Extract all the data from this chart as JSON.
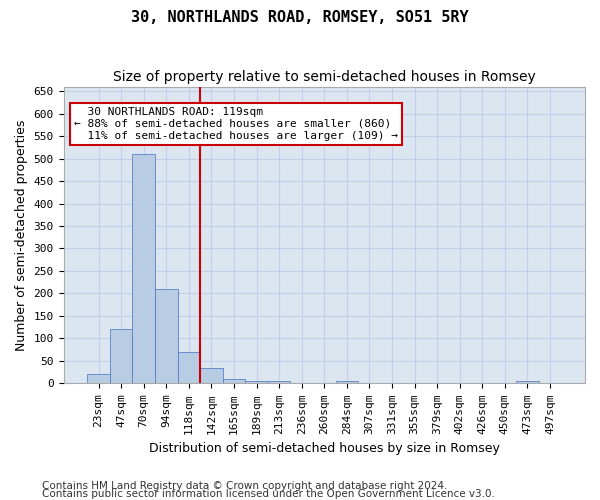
{
  "title": "30, NORTHLANDS ROAD, ROMSEY, SO51 5RY",
  "subtitle": "Size of property relative to semi-detached houses in Romsey",
  "xlabel": "Distribution of semi-detached houses by size in Romsey",
  "ylabel": "Number of semi-detached properties",
  "bins": [
    "23sqm",
    "47sqm",
    "70sqm",
    "94sqm",
    "118sqm",
    "142sqm",
    "165sqm",
    "189sqm",
    "213sqm",
    "236sqm",
    "260sqm",
    "284sqm",
    "307sqm",
    "331sqm",
    "355sqm",
    "379sqm",
    "402sqm",
    "426sqm",
    "450sqm",
    "473sqm",
    "497sqm"
  ],
  "values": [
    20,
    120,
    510,
    210,
    70,
    35,
    10,
    5,
    5,
    0,
    0,
    5,
    0,
    0,
    0,
    0,
    0,
    0,
    0,
    5,
    0
  ],
  "bar_color": "#b8cce4",
  "bar_edge_color": "#4472c4",
  "grid_color": "#c0d0e8",
  "background_color": "#dce6f1",
  "property_label": "30 NORTHLANDS ROAD: 119sqm",
  "smaller_pct": 88,
  "smaller_count": 860,
  "larger_pct": 11,
  "larger_count": 109,
  "annotation_box_color": "#ffffff",
  "annotation_box_edge": "#cc0000",
  "vline_color": "#cc0000",
  "vline_x": 4.5,
  "ylim": [
    0,
    660
  ],
  "yticks": [
    0,
    50,
    100,
    150,
    200,
    250,
    300,
    350,
    400,
    450,
    500,
    550,
    600,
    650
  ],
  "title_fontsize": 11,
  "subtitle_fontsize": 10,
  "xlabel_fontsize": 9,
  "ylabel_fontsize": 9,
  "tick_fontsize": 8,
  "footer_fontsize": 7.5,
  "footer1": "Contains HM Land Registry data © Crown copyright and database right 2024.",
  "footer2": "Contains public sector information licensed under the Open Government Licence v3.0."
}
